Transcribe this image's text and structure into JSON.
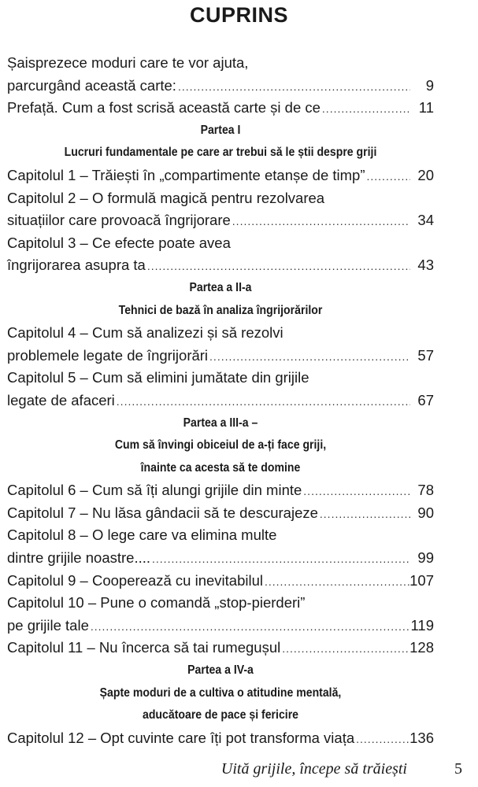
{
  "title": "CUPRINS",
  "lines": [
    {
      "type": "text",
      "text": "Șaisprezece moduri care te vor ajuta,"
    },
    {
      "type": "entry",
      "text": "parcurgând această carte: ",
      "page": "9"
    },
    {
      "type": "entry",
      "text": "Prefață. Cum a fost scrisă această carte și de ce ",
      "page": "11"
    },
    {
      "type": "head",
      "text": "Partea I"
    },
    {
      "type": "head",
      "text": "Lucruri fundamentale pe care ar trebui să le știi despre griji"
    },
    {
      "type": "entry",
      "text": "Capitolul 1 – Trăiești în „compartimente etanșe de timp” ",
      "page": "20"
    },
    {
      "type": "text",
      "text": "Capitolul 2 – O formulă magică pentru rezolvarea"
    },
    {
      "type": "entry",
      "text": "situațiilor care provoacă îngrijorare",
      "page": "34"
    },
    {
      "type": "text",
      "text": "Capitolul 3 – Ce efecte poate avea"
    },
    {
      "type": "entry",
      "text": "îngrijorarea asupra ta ",
      "page": "43"
    },
    {
      "type": "head",
      "text": "Partea a II-a"
    },
    {
      "type": "head",
      "text": "Tehnici de bază în analiza îngrijorărilor"
    },
    {
      "type": "text",
      "text": "Capitolul 4 – Cum să analizezi și să rezolvi"
    },
    {
      "type": "entry",
      "text": "problemele legate de îngrijorări",
      "page": "57"
    },
    {
      "type": "text",
      "text": "Capitolul 5 – Cum să elimini jumătate din grijile"
    },
    {
      "type": "entry",
      "text": "legate de afaceri ",
      "page": "67"
    },
    {
      "type": "head",
      "text": "Partea a III-a –"
    },
    {
      "type": "head",
      "text": "Cum să învingi obiceiul de a-ți face griji,"
    },
    {
      "type": "head",
      "text": "înainte ca acesta să te domine"
    },
    {
      "type": "entry",
      "text": "Capitolul 6 – Cum să îți alungi grijile din minte",
      "page": "78"
    },
    {
      "type": "entry",
      "text": "Capitolul 7 – Nu lăsa gândacii să te descurajeze ",
      "page": "90"
    },
    {
      "type": "text",
      "text": "Capitolul 8 – O lege care va elimina multe"
    },
    {
      "type": "entry",
      "text": "dintre grijile noastre.... ",
      "page": "99"
    },
    {
      "type": "entry",
      "text": "Capitolul 9 – Cooperează cu inevitabilul",
      "page": "107"
    },
    {
      "type": "text",
      "text": "Capitolul 10 – Pune o comandă „stop-pierderi”"
    },
    {
      "type": "entry",
      "text": "pe grijile tale",
      "page": "119"
    },
    {
      "type": "entry",
      "text": "Capitolul 11 – Nu încerca să tai rumegușul ",
      "page": "128"
    },
    {
      "type": "head",
      "text": "Partea a IV-a"
    },
    {
      "type": "head",
      "text": "Șapte moduri de a cultiva o atitudine mentală,"
    },
    {
      "type": "head",
      "text": "aducătoare de pace și fericire"
    },
    {
      "type": "entry",
      "text": "Capitolul 12 – Opt cuvinte care îți pot transforma viața ",
      "page": "136"
    }
  ],
  "footer": {
    "book_title": "Uită grijile, începe să trăiești",
    "page_number": "5"
  }
}
